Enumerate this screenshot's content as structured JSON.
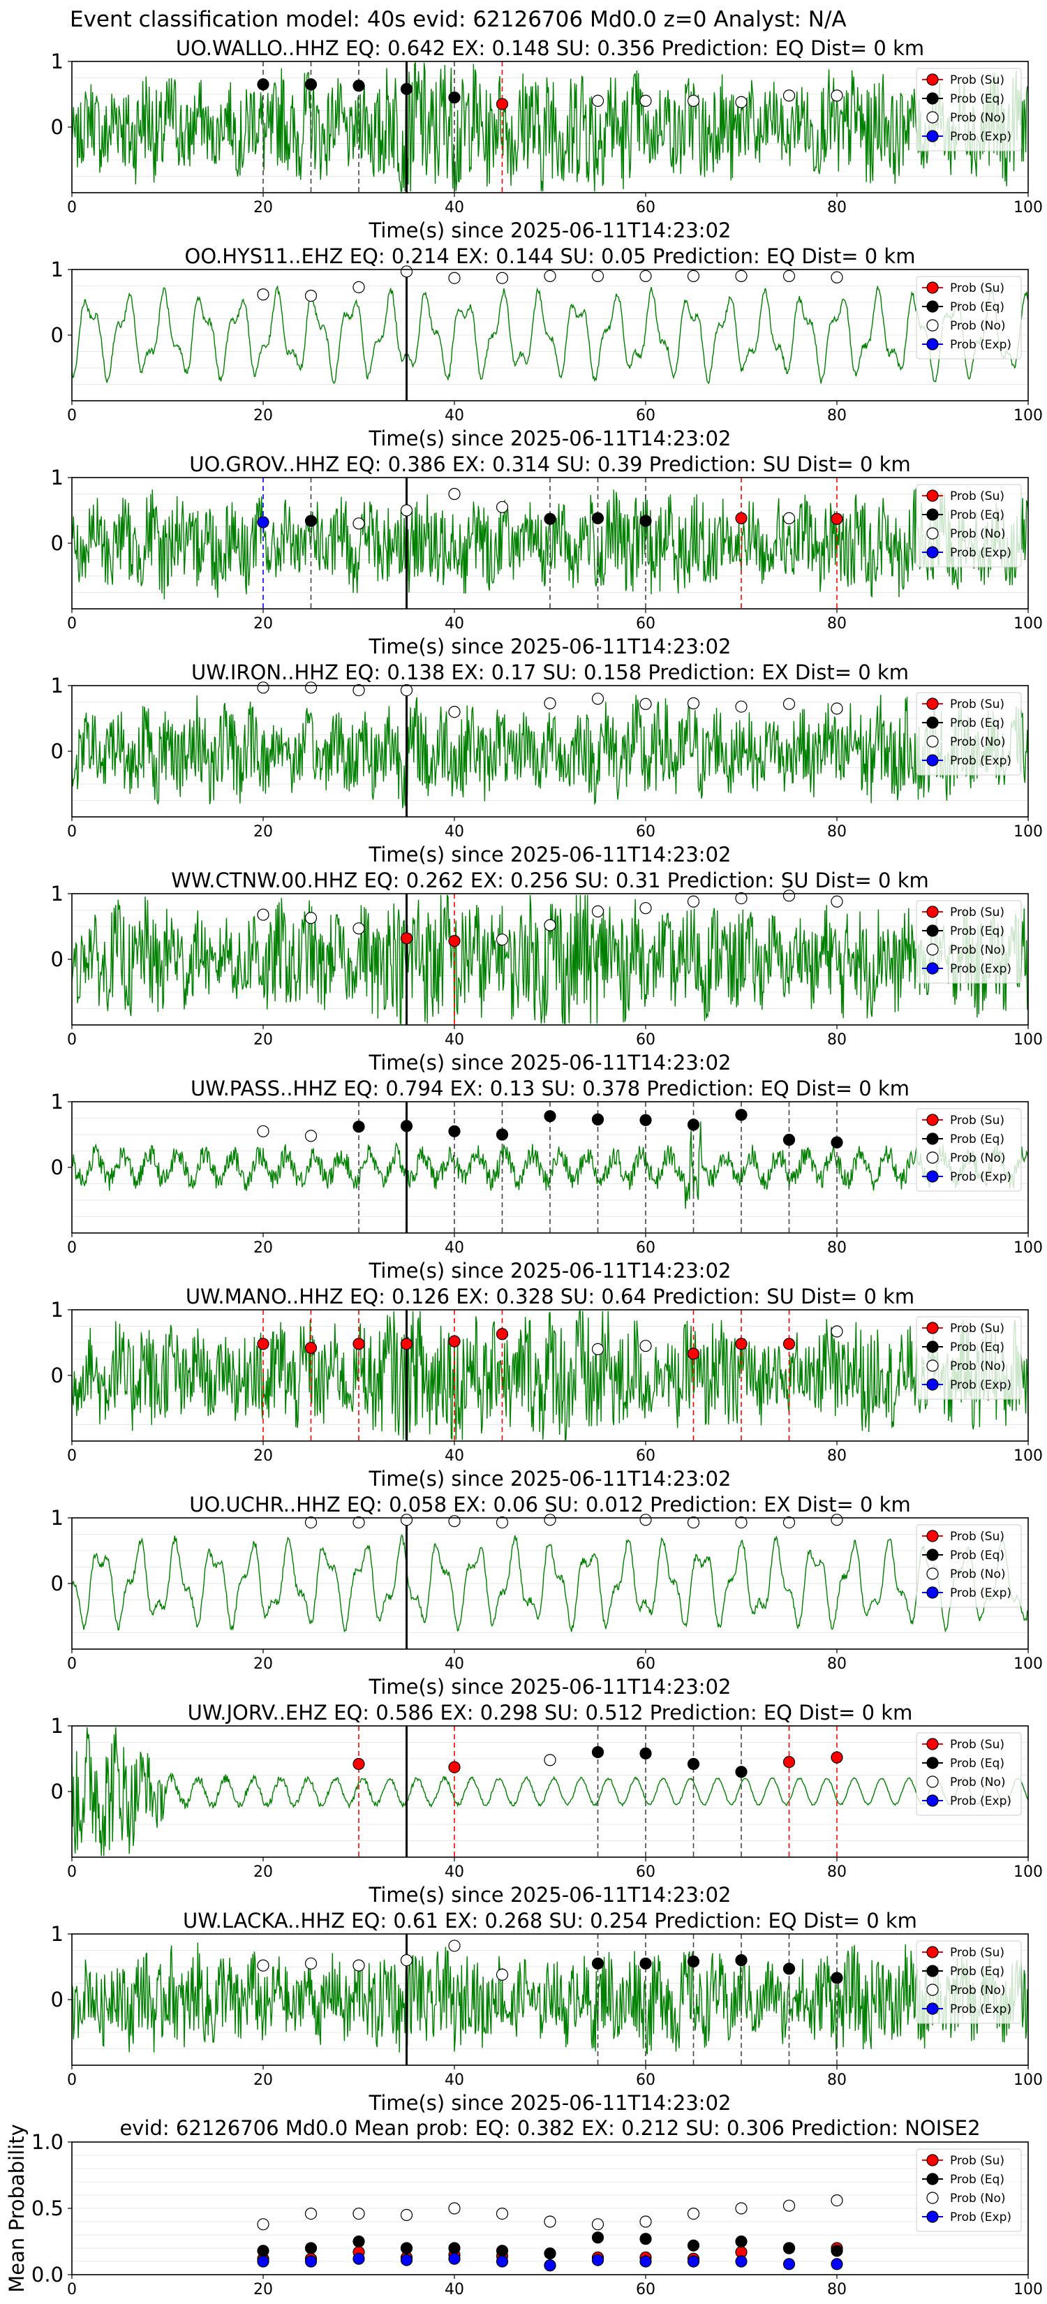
{
  "suptitle": "Event classification model: 40s evid: 62126706 Md0.0 z=0 Analyst: N/A",
  "legend": [
    "Prob (Su)",
    "Prob (Eq)",
    "Prob (No)",
    "Prob (Exp)"
  ],
  "colors": {
    "su": "#ff0000",
    "eq": "#000000",
    "no": "#ffffff",
    "exp": "#0000ff",
    "trace": "#008000",
    "pick": "#000000"
  },
  "xlabel": "Time(s) since 2025-06-11T14:23:02",
  "xticks": [
    0,
    20,
    40,
    60,
    80,
    100
  ],
  "yticks": [
    0,
    1
  ],
  "chart_data": [
    {
      "type": "line",
      "title": "UO.WALLO..HHZ   EQ: 0.642  EX: 0.148  SU: 0.356   Prediction: EQ    Dist= 0 km",
      "xlim": [
        0,
        100
      ],
      "ylim": [
        -1,
        1
      ],
      "trace": "noisy",
      "pick": 35,
      "markers": [
        [
          20,
          0.65,
          "eq"
        ],
        [
          25,
          0.65,
          "eq"
        ],
        [
          30,
          0.63,
          "eq"
        ],
        [
          35,
          0.58,
          "eq"
        ],
        [
          40,
          0.45,
          "eq"
        ],
        [
          45,
          0.35,
          "su"
        ],
        [
          55,
          0.4,
          "no"
        ],
        [
          60,
          0.4,
          "no"
        ],
        [
          65,
          0.4,
          "no"
        ],
        [
          70,
          0.38,
          "no"
        ],
        [
          75,
          0.48,
          "no"
        ],
        [
          80,
          0.48,
          "no"
        ]
      ]
    },
    {
      "type": "line",
      "title": "OO.HYS11..EHZ   EQ: 0.214  EX: 0.144  SU: 0.05   Prediction: EQ    Dist= 0 km",
      "xlim": [
        0,
        100
      ],
      "ylim": [
        -1,
        1
      ],
      "trace": "smooth",
      "pick": 35,
      "markers": [
        [
          20,
          0.62,
          "no"
        ],
        [
          25,
          0.6,
          "no"
        ],
        [
          30,
          0.73,
          "no"
        ],
        [
          35,
          0.97,
          "no"
        ],
        [
          40,
          0.87,
          "no"
        ],
        [
          45,
          0.87,
          "no"
        ],
        [
          50,
          0.9,
          "no"
        ],
        [
          55,
          0.9,
          "no"
        ],
        [
          60,
          0.9,
          "no"
        ],
        [
          65,
          0.9,
          "no"
        ],
        [
          70,
          0.9,
          "no"
        ],
        [
          75,
          0.9,
          "no"
        ],
        [
          80,
          0.88,
          "no"
        ]
      ]
    },
    {
      "type": "line",
      "title": "UO.GROV..HHZ   EQ: 0.386  EX: 0.314  SU: 0.39   Prediction: SU    Dist= 0 km",
      "xlim": [
        0,
        100
      ],
      "ylim": [
        -1,
        1
      ],
      "trace": "mixed",
      "pick": 35,
      "markers": [
        [
          20,
          0.32,
          "exp"
        ],
        [
          25,
          0.34,
          "eq"
        ],
        [
          30,
          0.3,
          "no"
        ],
        [
          35,
          0.5,
          "no"
        ],
        [
          40,
          0.75,
          "no"
        ],
        [
          45,
          0.55,
          "no"
        ],
        [
          50,
          0.37,
          "eq"
        ],
        [
          55,
          0.38,
          "eq"
        ],
        [
          60,
          0.34,
          "eq"
        ],
        [
          70,
          0.38,
          "su"
        ],
        [
          75,
          0.38,
          "no"
        ],
        [
          80,
          0.37,
          "su"
        ]
      ]
    },
    {
      "type": "line",
      "title": "UW.IRON..HHZ   EQ: 0.138  EX: 0.17  SU: 0.158   Prediction: EX    Dist= 0 km",
      "xlim": [
        0,
        100
      ],
      "ylim": [
        -1,
        1
      ],
      "trace": "mixed",
      "pick": 35,
      "markers": [
        [
          20,
          0.97,
          "no"
        ],
        [
          25,
          0.97,
          "no"
        ],
        [
          30,
          0.93,
          "no"
        ],
        [
          35,
          0.93,
          "no"
        ],
        [
          40,
          0.6,
          "no"
        ],
        [
          50,
          0.73,
          "no"
        ],
        [
          55,
          0.8,
          "no"
        ],
        [
          60,
          0.72,
          "no"
        ],
        [
          65,
          0.73,
          "no"
        ],
        [
          70,
          0.68,
          "no"
        ],
        [
          75,
          0.72,
          "no"
        ],
        [
          80,
          0.65,
          "no"
        ]
      ]
    },
    {
      "type": "line",
      "title": "WW.CTNW.00.HHZ   EQ: 0.262  EX: 0.256  SU: 0.31   Prediction: SU    Dist= 0 km",
      "xlim": [
        0,
        100
      ],
      "ylim": [
        -1,
        1
      ],
      "trace": "noisy",
      "pick": 35,
      "markers": [
        [
          20,
          0.68,
          "no"
        ],
        [
          25,
          0.63,
          "no"
        ],
        [
          30,
          0.47,
          "no"
        ],
        [
          35,
          0.32,
          "su"
        ],
        [
          40,
          0.28,
          "su"
        ],
        [
          45,
          0.3,
          "no"
        ],
        [
          50,
          0.52,
          "no"
        ],
        [
          55,
          0.73,
          "no"
        ],
        [
          60,
          0.78,
          "no"
        ],
        [
          65,
          0.88,
          "no"
        ],
        [
          70,
          0.93,
          "no"
        ],
        [
          75,
          0.97,
          "no"
        ],
        [
          80,
          0.88,
          "no"
        ]
      ]
    },
    {
      "type": "line",
      "title": "UW.PASS..HHZ   EQ: 0.794  EX: 0.13  SU: 0.378   Prediction: EQ    Dist= 0 km",
      "xlim": [
        0,
        100
      ],
      "ylim": [
        -1,
        1
      ],
      "trace": "quiet",
      "pick": 35,
      "markers": [
        [
          20,
          0.55,
          "no"
        ],
        [
          25,
          0.48,
          "no"
        ],
        [
          30,
          0.62,
          "eq"
        ],
        [
          35,
          0.63,
          "eq"
        ],
        [
          40,
          0.55,
          "eq"
        ],
        [
          45,
          0.5,
          "eq"
        ],
        [
          50,
          0.78,
          "eq"
        ],
        [
          55,
          0.73,
          "eq"
        ],
        [
          60,
          0.72,
          "eq"
        ],
        [
          65,
          0.65,
          "eq"
        ],
        [
          70,
          0.8,
          "eq"
        ],
        [
          75,
          0.42,
          "eq"
        ],
        [
          80,
          0.38,
          "eq"
        ]
      ]
    },
    {
      "type": "line",
      "title": "UW.MANO..HHZ   EQ: 0.126  EX: 0.328  SU: 0.64   Prediction: SU    Dist= 0 km",
      "xlim": [
        0,
        100
      ],
      "ylim": [
        -1,
        1
      ],
      "trace": "noisy",
      "pick": 35,
      "markers": [
        [
          20,
          0.48,
          "su"
        ],
        [
          25,
          0.42,
          "su"
        ],
        [
          30,
          0.48,
          "su"
        ],
        [
          35,
          0.48,
          "su"
        ],
        [
          40,
          0.52,
          "su"
        ],
        [
          45,
          0.63,
          "su"
        ],
        [
          55,
          0.4,
          "no"
        ],
        [
          60,
          0.45,
          "no"
        ],
        [
          65,
          0.33,
          "su"
        ],
        [
          70,
          0.48,
          "su"
        ],
        [
          75,
          0.48,
          "su"
        ],
        [
          80,
          0.67,
          "no"
        ]
      ]
    },
    {
      "type": "line",
      "title": "UO.UCHR..HHZ   EQ: 0.058  EX: 0.06  SU: 0.012   Prediction: EX    Dist= 0 km",
      "xlim": [
        0,
        100
      ],
      "ylim": [
        -1,
        1
      ],
      "trace": "smooth",
      "pick": 35,
      "markers": [
        [
          25,
          0.93,
          "no"
        ],
        [
          30,
          0.93,
          "no"
        ],
        [
          35,
          0.97,
          "no"
        ],
        [
          40,
          0.95,
          "no"
        ],
        [
          45,
          0.93,
          "no"
        ],
        [
          50,
          0.97,
          "no"
        ],
        [
          60,
          0.97,
          "no"
        ],
        [
          65,
          0.93,
          "no"
        ],
        [
          70,
          0.93,
          "no"
        ],
        [
          75,
          0.93,
          "no"
        ],
        [
          80,
          0.97,
          "no"
        ]
      ]
    },
    {
      "type": "line",
      "title": "UW.JORV..EHZ   EQ: 0.586  EX: 0.298  SU: 0.512   Prediction: EQ    Dist= 0 km",
      "xlim": [
        0,
        100
      ],
      "ylim": [
        -1,
        1
      ],
      "trace": "burst",
      "pick": 35,
      "markers": [
        [
          30,
          0.42,
          "su"
        ],
        [
          40,
          0.37,
          "su"
        ],
        [
          50,
          0.48,
          "no"
        ],
        [
          55,
          0.6,
          "eq"
        ],
        [
          60,
          0.58,
          "eq"
        ],
        [
          65,
          0.42,
          "eq"
        ],
        [
          70,
          0.3,
          "eq"
        ],
        [
          75,
          0.45,
          "su"
        ],
        [
          80,
          0.52,
          "su"
        ]
      ]
    },
    {
      "type": "line",
      "title": "UW.LACKA..HHZ   EQ: 0.61  EX: 0.268  SU: 0.254   Prediction: EQ    Dist= 0 km",
      "xlim": [
        0,
        100
      ],
      "ylim": [
        -1,
        1
      ],
      "trace": "mixed",
      "pick": 35,
      "markers": [
        [
          20,
          0.52,
          "no"
        ],
        [
          25,
          0.55,
          "no"
        ],
        [
          30,
          0.52,
          "no"
        ],
        [
          35,
          0.6,
          "no"
        ],
        [
          40,
          0.82,
          "no"
        ],
        [
          45,
          0.38,
          "no"
        ],
        [
          55,
          0.55,
          "eq"
        ],
        [
          60,
          0.55,
          "eq"
        ],
        [
          65,
          0.58,
          "eq"
        ],
        [
          70,
          0.6,
          "eq"
        ],
        [
          75,
          0.47,
          "eq"
        ],
        [
          80,
          0.33,
          "eq"
        ]
      ]
    },
    {
      "type": "scatter",
      "title": "evid: 62126706  Md0.0   Mean prob:   EQ: 0.382  EX: 0.212  SU: 0.306   Prediction: NOISE2",
      "ylabel": "Mean Probability",
      "xlim": [
        0,
        100
      ],
      "ylim": [
        0,
        1
      ],
      "yticks": [
        "0.0",
        "0.5",
        "1.0"
      ],
      "series": [
        {
          "name": "Prob (Su)",
          "x": [
            20,
            25,
            30,
            35,
            40,
            45,
            50,
            55,
            60,
            65,
            70,
            75,
            80
          ],
          "values": [
            0.12,
            0.12,
            0.17,
            0.13,
            0.15,
            0.14,
            0.07,
            0.13,
            0.13,
            0.12,
            0.17,
            0.2,
            0.2
          ]
        },
        {
          "name": "Prob (Eq)",
          "x": [
            20,
            25,
            30,
            35,
            40,
            45,
            50,
            55,
            60,
            65,
            70,
            75,
            80
          ],
          "values": [
            0.18,
            0.2,
            0.25,
            0.2,
            0.2,
            0.18,
            0.16,
            0.28,
            0.27,
            0.22,
            0.25,
            0.2,
            0.18
          ]
        },
        {
          "name": "Prob (No)",
          "x": [
            20,
            25,
            30,
            35,
            40,
            45,
            50,
            55,
            60,
            65,
            70,
            75,
            80
          ],
          "values": [
            0.38,
            0.46,
            0.46,
            0.45,
            0.5,
            0.46,
            0.4,
            0.38,
            0.4,
            0.46,
            0.5,
            0.52,
            0.56
          ]
        },
        {
          "name": "Prob (Exp)",
          "x": [
            20,
            25,
            30,
            35,
            40,
            45,
            50,
            55,
            60,
            65,
            70,
            75,
            80
          ],
          "values": [
            0.1,
            0.1,
            0.12,
            0.11,
            0.12,
            0.1,
            0.07,
            0.11,
            0.1,
            0.1,
            0.1,
            0.08,
            0.08
          ]
        }
      ]
    }
  ]
}
